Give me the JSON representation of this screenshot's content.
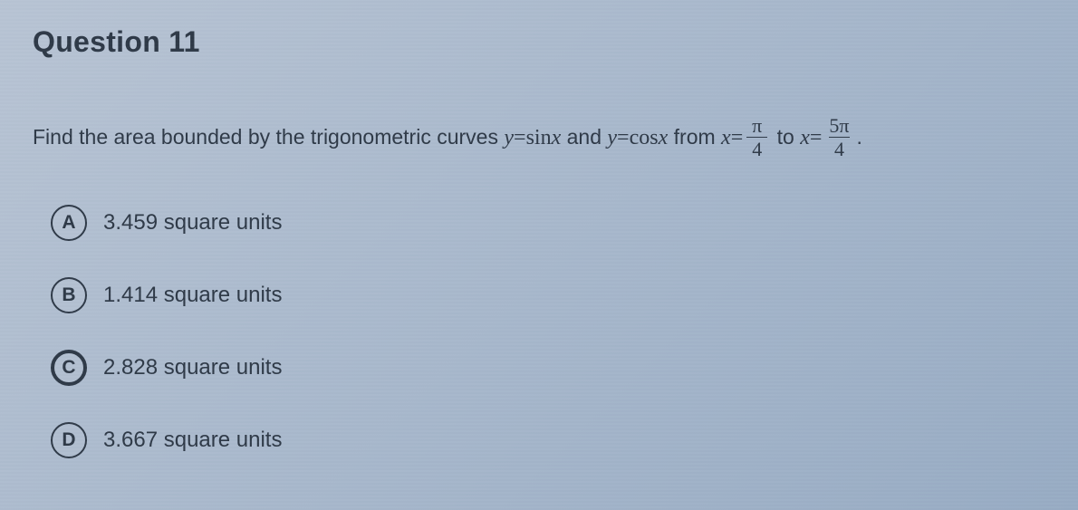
{
  "question": {
    "title": "Question 11",
    "prompt_lead": "Find the area bounded by the trigonometric curves ",
    "eq1_lhs": "y",
    "eq1_eq": "=",
    "eq1_rhs_fn": "sin",
    "eq1_rhs_var": "x",
    "and": " and ",
    "eq2_lhs": "y",
    "eq2_eq": "=",
    "eq2_rhs_fn": "cos",
    "eq2_rhs_var": "x",
    "from": " from ",
    "x1_lhs": "x",
    "x1_eq": "=",
    "frac1_num": "π",
    "frac1_den": "4",
    "to": " to ",
    "x2_lhs": "x",
    "x2_eq": "=",
    "frac2_num": "5π",
    "frac2_den": "4",
    "tail": "."
  },
  "options": {
    "A": {
      "letter": "A",
      "text": "3.459 square units",
      "selected": false
    },
    "B": {
      "letter": "B",
      "text": "1.414 square units",
      "selected": false
    },
    "C": {
      "letter": "C",
      "text": "2.828 square units",
      "selected": true
    },
    "D": {
      "letter": "D",
      "text": "3.667 square units",
      "selected": false
    }
  },
  "colors": {
    "text": "#2f3a48",
    "bg_start": "#b8c4d4",
    "bg_end": "#98acc4"
  }
}
